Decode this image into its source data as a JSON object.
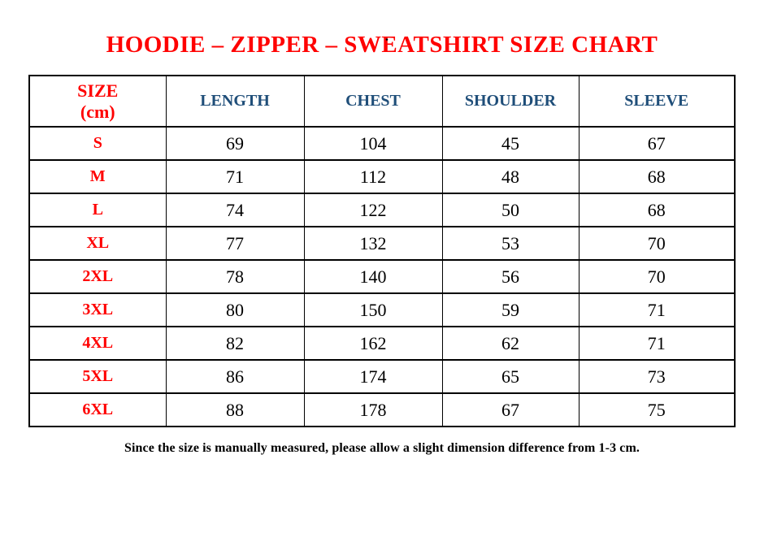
{
  "page": {
    "stray_mark": "."
  },
  "title": "HOODIE – ZIPPER – SWEATSHIRT SIZE CHART",
  "table": {
    "header": {
      "size_line1": "SIZE",
      "size_line2": "(cm)",
      "cols": [
        "LENGTH",
        "CHEST",
        "SHOULDER",
        "SLEEVE"
      ]
    },
    "rows": [
      {
        "size": "S",
        "length": "69",
        "chest": "104",
        "shoulder": "45",
        "sleeve": "67"
      },
      {
        "size": "M",
        "length": "71",
        "chest": "112",
        "shoulder": "48",
        "sleeve": "68"
      },
      {
        "size": "L",
        "length": "74",
        "chest": "122",
        "shoulder": "50",
        "sleeve": "68"
      },
      {
        "size": "XL",
        "length": "77",
        "chest": "132",
        "shoulder": "53",
        "sleeve": "70"
      },
      {
        "size": "2XL",
        "length": "78",
        "chest": "140",
        "shoulder": "56",
        "sleeve": "70"
      },
      {
        "size": "3XL",
        "length": "80",
        "chest": "150",
        "shoulder": "59",
        "sleeve": "71"
      },
      {
        "size": "4XL",
        "length": "82",
        "chest": "162",
        "shoulder": "62",
        "sleeve": "71"
      },
      {
        "size": "5XL",
        "length": "86",
        "chest": "174",
        "shoulder": "65",
        "sleeve": "73"
      },
      {
        "size": "6XL",
        "length": "88",
        "chest": "178",
        "shoulder": "67",
        "sleeve": "75"
      }
    ]
  },
  "footnote": "Since the size is manually measured, please allow a slight dimension difference from 1-3 cm.",
  "colors": {
    "red": "#ff0000",
    "blue": "#1f4e79",
    "ink": "#000000",
    "paper": "#ffffff"
  }
}
